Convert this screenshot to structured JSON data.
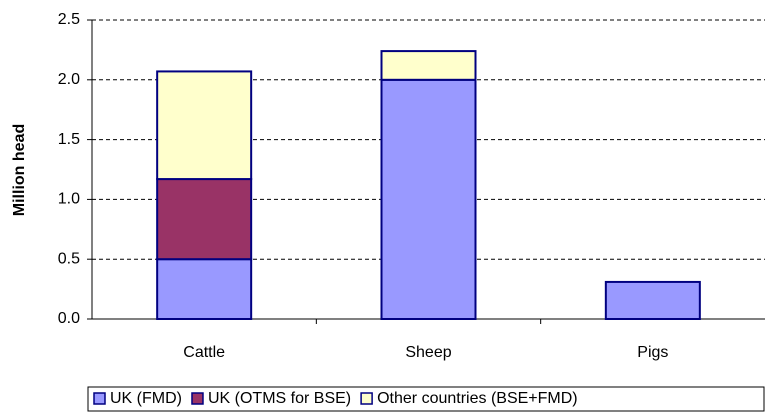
{
  "chart_data": {
    "type": "stacked_bar",
    "categories": [
      "Cattle",
      "Sheep",
      "Pigs"
    ],
    "series": [
      {
        "name": "UK (FMD)",
        "color": "#9999ff",
        "values": [
          0.5,
          2.0,
          0.31
        ]
      },
      {
        "name": "UK (OTMS for BSE)",
        "color": "#993366",
        "values": [
          0.67,
          0,
          0
        ]
      },
      {
        "name": "Other countries (BSE+FMD)",
        "color": "#ffffcc",
        "values": [
          0.9,
          0.24,
          0
        ]
      }
    ],
    "y_label": "Million head",
    "ylim": [
      0,
      2.5
    ],
    "yticks": [
      {
        "value": 0,
        "label": "0.0"
      },
      0.5,
      {
        "value": 1,
        "label": "1.0"
      },
      1.5,
      {
        "value": 2,
        "label": "2.0"
      },
      2.5
    ],
    "grid": true
  }
}
